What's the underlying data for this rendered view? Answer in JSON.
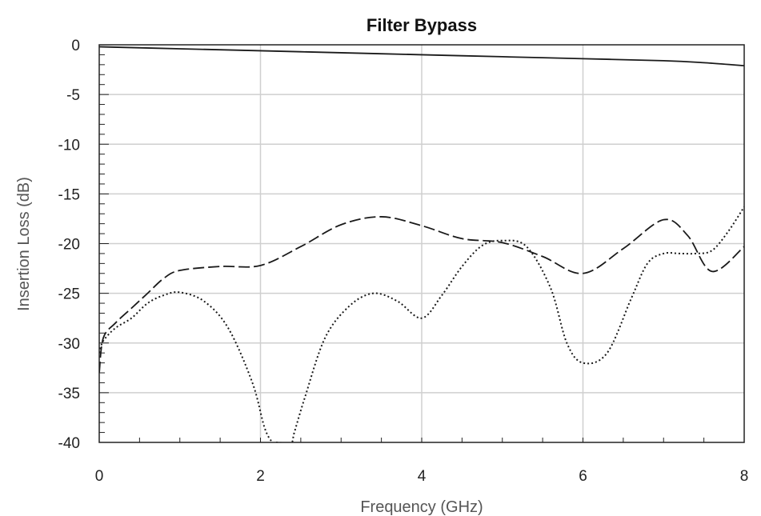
{
  "chart_data": {
    "type": "line",
    "title": "Filter Bypass",
    "xlabel": "Frequency (GHz)",
    "ylabel": "Insertion Loss (dB)",
    "xlim": [
      0,
      8
    ],
    "ylim": [
      -40,
      0
    ],
    "x_ticks": [
      0,
      2,
      4,
      6,
      8
    ],
    "y_ticks": [
      0,
      -5,
      -10,
      -15,
      -20,
      -25,
      -30,
      -35,
      -40
    ],
    "grid": true,
    "series": [
      {
        "style": "solid",
        "x": [
          0,
          1,
          2,
          3,
          4,
          5,
          6,
          7,
          7.5,
          8
        ],
        "y": [
          -0.2,
          -0.4,
          -0.6,
          -0.8,
          -1.0,
          -1.2,
          -1.4,
          -1.6,
          -1.8,
          -2.1
        ]
      },
      {
        "style": "dashed",
        "x": [
          0,
          0.05,
          0.2,
          0.4,
          0.6,
          0.8,
          1.0,
          1.5,
          2.0,
          2.5,
          3.0,
          3.5,
          4.0,
          4.5,
          5.0,
          5.5,
          6.0,
          6.5,
          7.0,
          7.3,
          7.6,
          8.0
        ],
        "y": [
          -33,
          -29.5,
          -28,
          -26.5,
          -25,
          -23.5,
          -22.7,
          -22.3,
          -22.2,
          -20.3,
          -18.1,
          -17.3,
          -18.2,
          -19.5,
          -19.9,
          -21.3,
          -23.0,
          -20.5,
          -17.6,
          -19.2,
          -22.8,
          -20.3
        ]
      },
      {
        "style": "dotted",
        "x": [
          0,
          0.05,
          0.2,
          0.4,
          0.6,
          0.8,
          1.0,
          1.3,
          1.6,
          1.9,
          2.05,
          2.15,
          2.2,
          2.38,
          2.42,
          2.55,
          2.8,
          3.1,
          3.4,
          3.7,
          4.0,
          4.25,
          4.5,
          4.75,
          5.0,
          5.3,
          5.6,
          5.8,
          6.0,
          6.3,
          6.6,
          6.8,
          7.0,
          7.2,
          7.4,
          7.6,
          7.8,
          8.0
        ],
        "y": [
          -31,
          -29.8,
          -28.5,
          -27.5,
          -26,
          -25.2,
          -24.9,
          -25.8,
          -28.5,
          -34,
          -38.5,
          -40,
          -40,
          -40,
          -39,
          -35.5,
          -29.5,
          -26.3,
          -25.0,
          -25.8,
          -27.5,
          -25.2,
          -22.3,
          -20.2,
          -19.7,
          -20.3,
          -24.5,
          -30.0,
          -32.0,
          -31.0,
          -25.5,
          -22.0,
          -21.0,
          -21.0,
          -21.0,
          -20.7,
          -18.8,
          -16.3
        ]
      }
    ]
  }
}
